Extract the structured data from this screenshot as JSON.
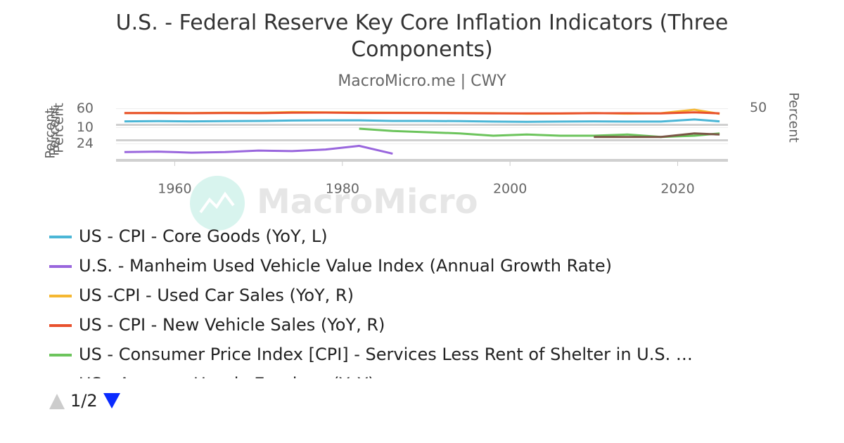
{
  "header": {
    "title": "U.S. - Federal Reserve Key Core Inflation Indicators (Three Components)",
    "subtitle": "MacroMicro.me | CWY",
    "watermark": "MacroMicro",
    "legend_page": "1/2"
  },
  "chart_data": {
    "type": "line",
    "x": [
      1954,
      1958,
      1962,
      1966,
      1970,
      1974,
      1978,
      1982,
      1986,
      1990,
      1994,
      1998,
      2002,
      2006,
      2010,
      2014,
      2018,
      2022,
      2025
    ],
    "xlim": [
      1953,
      2026
    ],
    "xticks": [
      1960,
      1980,
      2000,
      2020
    ],
    "panels": [
      {
        "ylim": [
          -10,
          65
        ],
        "yticks": [
          60
        ],
        "y_label": "Percent",
        "y2lim": [
          -100,
          55
        ],
        "y2ticks": [
          50
        ],
        "y2_label": "Percent"
      },
      {
        "ylim": [
          0,
          12
        ],
        "yticks": [
          10
        ],
        "y_label": "Percent"
      },
      {
        "ylim": [
          -5,
          30
        ],
        "yticks": [
          24
        ],
        "y_label": "Percent"
      }
    ],
    "series": [
      {
        "name": "US - CPI - Core Goods (YoY, L)",
        "color": "#4bb6d6",
        "panel": 0,
        "values": [
          1,
          2,
          1,
          2,
          3,
          5,
          6,
          6,
          3,
          3,
          2,
          0,
          -1,
          0,
          1,
          0,
          0,
          10,
          1
        ]
      },
      {
        "name": "U.S. - Manheim Used Vehicle Value Index (Annual Growth Rate)",
        "color": "#9966dd",
        "panel": 2,
        "values": [
          8,
          9,
          7,
          8,
          11,
          10,
          13,
          20,
          5,
          null,
          null,
          null,
          null,
          null,
          null,
          null,
          null,
          null,
          null
        ]
      },
      {
        "name": "US -CPI - Used Car Sales (YoY, R)",
        "color": "#f5b731",
        "panel": 0,
        "axis": "y2",
        "values": [
          2,
          5,
          3,
          6,
          5,
          12,
          10,
          8,
          6,
          5,
          4,
          2,
          -3,
          -2,
          3,
          -3,
          1,
          35,
          -5
        ]
      },
      {
        "name": "US - CPI - New Vehicle Sales (YoY, R)",
        "color": "#e8512d",
        "panel": 0,
        "axis": "y2",
        "values": [
          3,
          2,
          1,
          3,
          2,
          6,
          7,
          4,
          4,
          3,
          1,
          0,
          -1,
          0,
          1,
          1,
          0,
          10,
          0
        ]
      },
      {
        "name": "US - Consumer Price Index [CPI] - Services Less Rent of Shelter in U.S. …",
        "color": "#6cc45c",
        "panel": 1,
        "values": [
          null,
          null,
          null,
          null,
          null,
          null,
          null,
          9,
          7,
          6,
          5,
          3,
          4,
          3,
          3,
          4,
          2,
          3,
          5
        ]
      },
      {
        "name": "US - Average Hourly Earnings (YoY)",
        "color": "#7a5545",
        "panel": 1,
        "values": [
          null,
          null,
          null,
          null,
          null,
          null,
          null,
          null,
          null,
          null,
          null,
          null,
          null,
          null,
          2,
          2,
          2,
          5,
          4
        ]
      }
    ]
  }
}
